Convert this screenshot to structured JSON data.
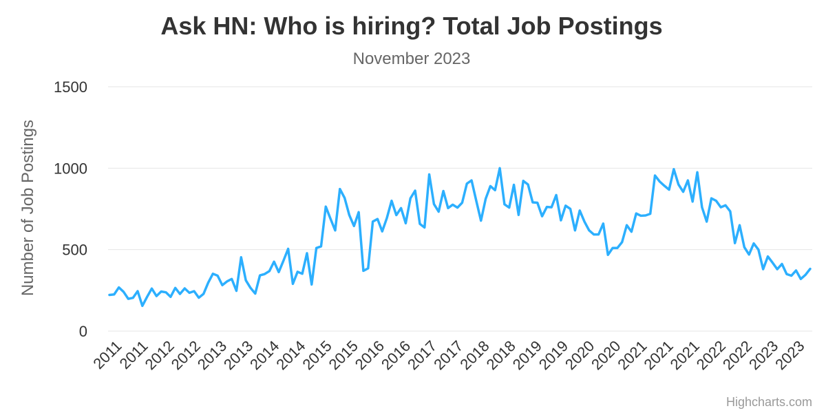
{
  "chart_data": {
    "type": "line",
    "title": "Ask HN: Who is hiring? Total Job Postings",
    "subtitle": "November 2023",
    "ylabel": "Number of Job Postings",
    "xlabel": "",
    "ylim": [
      0,
      1500
    ],
    "yticks": [
      "0",
      "500",
      "1000",
      "1500"
    ],
    "xtick_labels": [
      "2011",
      "2011",
      "2012",
      "2012",
      "2013",
      "2013",
      "2014",
      "2014",
      "2015",
      "2015",
      "2016",
      "2016",
      "2017",
      "2017",
      "2018",
      "2018",
      "2019",
      "2019",
      "2020",
      "2020",
      "2021",
      "2021",
      "2021",
      "2022",
      "2022",
      "2023",
      "2023"
    ],
    "grid": true,
    "legend": "none",
    "credit": "Highcharts.com",
    "color": "#2caffe",
    "series": [
      {
        "values": [
          222,
          225,
          268,
          241,
          198,
          204,
          245,
          155,
          210,
          261,
          215,
          243,
          238,
          210,
          265,
          228,
          262,
          235,
          245,
          205,
          228,
          297,
          352,
          340,
          282,
          305,
          320,
          247,
          453,
          312,
          265,
          230,
          342,
          350,
          368,
          426,
          362,
          432,
          505,
          290,
          364,
          352,
          478,
          286,
          510,
          520,
          764,
          690,
          618,
          872,
          818,
          712,
          645,
          730,
          370,
          385,
          672,
          688,
          612,
          695,
          800,
          712,
          755,
          662,
          815,
          862,
          658,
          636,
          962,
          780,
          733,
          860,
          755,
          776,
          758,
          788,
          905,
          925,
          800,
          678,
          812,
          890,
          865,
          1000,
          778,
          758,
          898,
          713,
          922,
          900,
          790,
          788,
          705,
          762,
          760,
          835,
          680,
          770,
          750,
          618,
          740,
          672,
          618,
          593,
          593,
          660,
          468,
          510,
          510,
          546,
          650,
          610,
          722,
          708,
          710,
          720,
          955,
          918,
          892,
          868,
          994,
          900,
          855,
          925,
          795,
          975,
          760,
          672,
          815,
          800,
          760,
          772,
          735,
          540,
          650,
          515,
          470,
          538,
          500,
          380,
          458,
          420,
          380,
          412,
          350,
          340,
          372,
          320,
          345,
          382
        ]
      }
    ]
  }
}
